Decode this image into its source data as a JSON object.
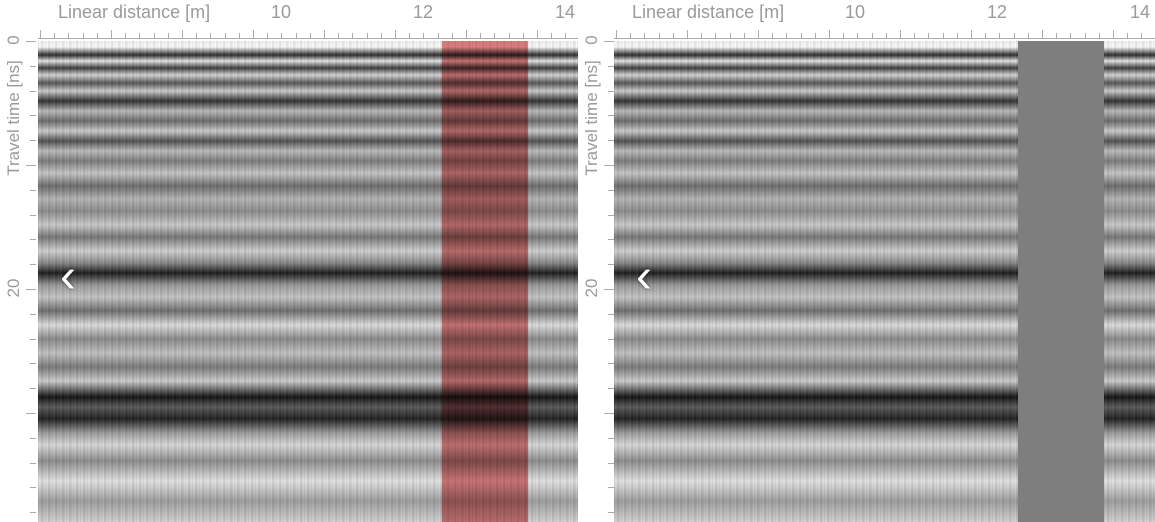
{
  "panels": [
    {
      "xlabel": "Linear distance [m]",
      "x_ticks": [
        "10",
        "12",
        "14"
      ],
      "ylabel": "Travel time [ns]",
      "y_ticks": [
        "0",
        "20"
      ],
      "overlay": "highlight"
    },
    {
      "xlabel": "Linear distance [m]",
      "x_ticks": [
        "10",
        "12",
        "14"
      ],
      "ylabel": "Travel time [ns]",
      "y_ticks": [
        "0",
        "20"
      ],
      "overlay": "masked"
    }
  ],
  "icons": {
    "prev": "chevron-left-icon"
  },
  "colors": {
    "highlight": "#c81e1e",
    "mask": "#7e7e7e",
    "axis_text": "#9a9a9a"
  }
}
